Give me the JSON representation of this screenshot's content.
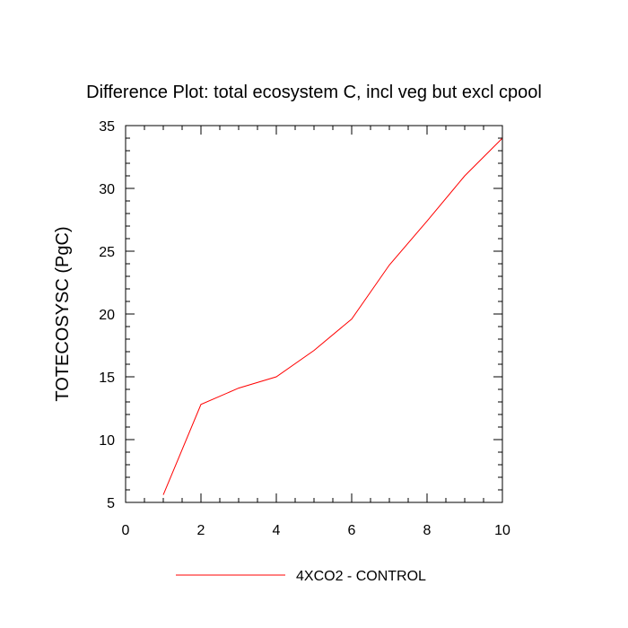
{
  "chart_data": {
    "type": "line",
    "title": "Difference Plot: total ecosystem C, incl veg but excl cpool",
    "xlabel": "",
    "ylabel": "TOTECOSYSC  (PgC)",
    "xlim": [
      0,
      10
    ],
    "ylim": [
      5,
      35
    ],
    "x_ticks": [
      "0",
      "2",
      "4",
      "6",
      "8",
      "10"
    ],
    "y_ticks": [
      "5",
      "10",
      "15",
      "20",
      "25",
      "30",
      "35"
    ],
    "grid": false,
    "legend_position": "bottom-center",
    "series": [
      {
        "name": "4XCO2 - CONTROL",
        "color": "#ff0000",
        "x": [
          1,
          2,
          3,
          4,
          5,
          6,
          7,
          8,
          9,
          10
        ],
        "y": [
          5.6,
          12.8,
          14.1,
          15.0,
          17.1,
          19.6,
          23.9,
          27.4,
          31.0,
          34.0
        ]
      }
    ]
  }
}
